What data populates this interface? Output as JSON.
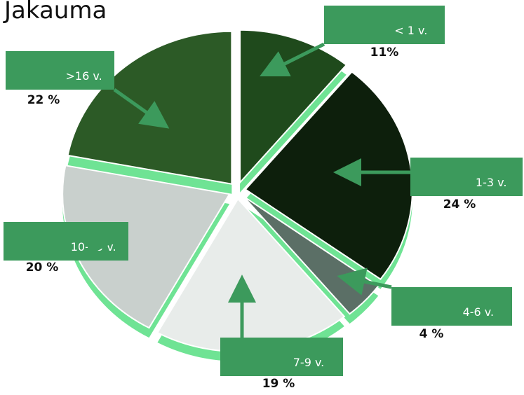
{
  "chart_data": {
    "type": "pie",
    "title": "Jakauma",
    "categories": [
      "< 1 v.",
      "1-3 v.",
      "4-6 v.",
      "7-9 v.",
      "10-15 v.",
      ">16 v."
    ],
    "values": [
      11,
      24,
      4,
      19,
      20,
      22
    ],
    "value_labels": [
      "11%",
      "24 %",
      "4 %",
      "19 %",
      "20 %",
      "22 %"
    ],
    "colors": [
      "#1f4a1c",
      "#0d1f0c",
      "#5b6f66",
      "#e8ecea",
      "#c9d0cd",
      "#2c5a26"
    ],
    "rim_color": "#6fe394",
    "label_color": "#3c9a5c"
  }
}
